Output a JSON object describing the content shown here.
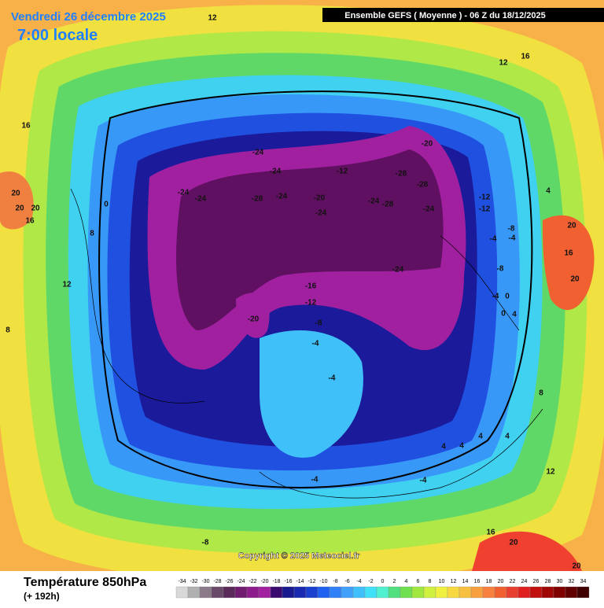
{
  "header": {
    "date": "Vendredi 26 décembre 2025",
    "time": "7:00 locale",
    "model": "Ensemble GEFS  ( Moyenne )  -  06 Z du 18/12/2025"
  },
  "copyright": "Copyright © 2025 Meteociel.fr",
  "footer": {
    "title": "Température 850hPa",
    "lead": "(+ 192h)"
  },
  "scale": {
    "values": [
      -34,
      -32,
      -30,
      -28,
      -26,
      -24,
      -22,
      -20,
      -18,
      -16,
      -14,
      -12,
      -10,
      -8,
      -6,
      -4,
      -2,
      0,
      2,
      4,
      6,
      8,
      10,
      12,
      14,
      16,
      18,
      20,
      22,
      24,
      26,
      28,
      30,
      32,
      34
    ],
    "colors": [
      "#d8d8d8",
      "#b0b0b0",
      "#8a7a8a",
      "#6a4a6a",
      "#5a2a5a",
      "#701c70",
      "#8c1c8c",
      "#a020a0",
      "#3a0a70",
      "#1a1a90",
      "#1a2ab0",
      "#1a40d0",
      "#2060f0",
      "#3080f8",
      "#40a0fa",
      "#40c0fa",
      "#40e0f8",
      "#50f0d0",
      "#50e080",
      "#70e050",
      "#a0e840",
      "#d0f040",
      "#f0f040",
      "#f8d840",
      "#f8c040",
      "#f8a040",
      "#f88040",
      "#f06030",
      "#e84030",
      "#e02020",
      "#c01010",
      "#a00808",
      "#800000",
      "#600000",
      "#400000"
    ]
  },
  "contour_labels": [
    12,
    12,
    16,
    16,
    20,
    20,
    20,
    16,
    0,
    8,
    12,
    -24,
    -24,
    -12,
    -20,
    -28,
    -28,
    -24,
    -24,
    -28,
    -24,
    -20,
    -24,
    -24,
    -28,
    -24,
    -12,
    -12,
    4,
    20,
    16,
    20,
    -8,
    -4,
    -4,
    -8,
    -24,
    -16,
    -12,
    -20,
    -8,
    -4,
    -4,
    0,
    0,
    4,
    -4,
    8,
    4,
    4,
    4,
    4,
    -4,
    -4,
    12,
    16,
    20,
    20,
    -8,
    8
  ]
}
